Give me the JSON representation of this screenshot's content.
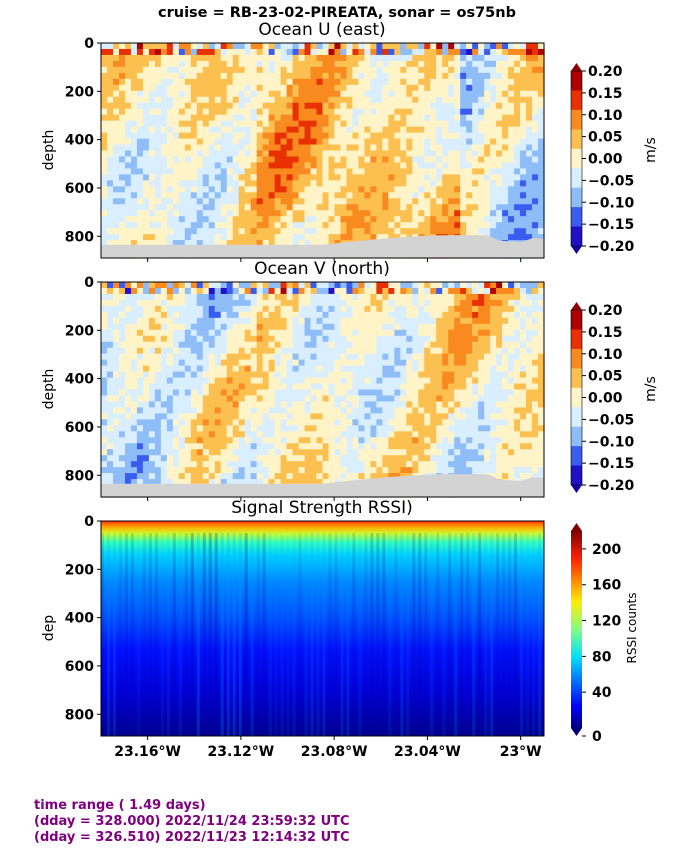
{
  "suptitle": "cruise = RB-23-02-PIREATA,  sonar = os75nb",
  "chart_data": [
    {
      "type": "heatmap",
      "title": "Ocean U (east)",
      "ylabel": "depth",
      "yticks": [
        0,
        200,
        400,
        600,
        800
      ],
      "ylim": [
        890,
        0
      ],
      "xlim": [
        -23.18,
        -22.99
      ],
      "colorbar": {
        "label": "m/s",
        "ticks": [
          "0.20",
          "0.15",
          "0.10",
          "0.05",
          "0.00",
          "−0.05",
          "−0.10",
          "−0.15",
          "−0.20"
        ],
        "colors": [
          "#b00000",
          "#e83000",
          "#f88a20",
          "#fcc050",
          "#fff4c8",
          "#d9eeff",
          "#8fbdf8",
          "#3a5cf0",
          "#2010c8"
        ]
      },
      "bottom_mask": "#d3d3d3"
    },
    {
      "type": "heatmap",
      "title": "Ocean V (north)",
      "ylabel": "depth",
      "yticks": [
        0,
        200,
        400,
        600,
        800
      ],
      "ylim": [
        890,
        0
      ],
      "xlim": [
        -23.18,
        -22.99
      ],
      "colorbar": {
        "label": "m/s",
        "ticks": [
          "0.20",
          "0.15",
          "0.10",
          "0.05",
          "0.00",
          "−0.05",
          "−0.10",
          "−0.15",
          "−0.20"
        ],
        "colors": [
          "#b00000",
          "#e83000",
          "#f88a20",
          "#fcc050",
          "#fff4c8",
          "#d9eeff",
          "#8fbdf8",
          "#3a5cf0",
          "#2010c8"
        ]
      },
      "bottom_mask": "#d3d3d3"
    },
    {
      "type": "heatmap",
      "title": "Signal Strength RSSI)",
      "ylabel": "dep",
      "yticks": [
        0,
        200,
        400,
        600,
        800
      ],
      "ylim": [
        890,
        0
      ],
      "xlim": [
        -23.18,
        -22.99
      ],
      "xticks": [
        {
          "value": -23.16,
          "label": "23.16°W"
        },
        {
          "value": -23.12,
          "label": "23.12°W"
        },
        {
          "value": -23.08,
          "label": "23.08°W"
        },
        {
          "value": -23.04,
          "label": "23.04°W"
        },
        {
          "value": -23.0,
          "label": "23°W"
        }
      ],
      "colorbar": {
        "label": "RSSI counts",
        "ticks": [
          0,
          40,
          80,
          120,
          160,
          200
        ],
        "range": [
          0,
          220
        ]
      }
    }
  ],
  "footer": {
    "line1": "time range ( 1.49 days)",
    "line2": "(dday = 328.000) 2022/11/24 23:59:32 UTC",
    "line3": "(dday = 326.510) 2022/11/23 12:14:32 UTC"
  }
}
